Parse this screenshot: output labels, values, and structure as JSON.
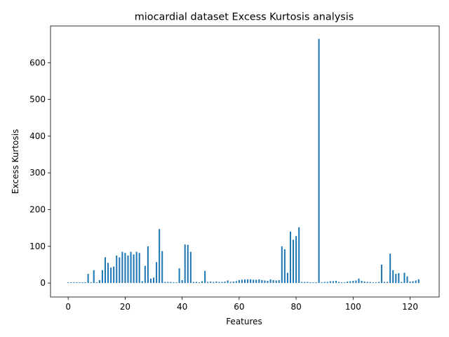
{
  "chart_data": {
    "type": "bar",
    "title": "miocardial dataset Excess Kurtosis analysis",
    "xlabel": "Features",
    "ylabel": "Excess Kurtosis",
    "xlim": [
      -6.2,
      130.2
    ],
    "ylim": [
      -38,
      700
    ],
    "xticks": [
      0,
      20,
      40,
      60,
      80,
      100,
      120
    ],
    "yticks": [
      0,
      100,
      200,
      300,
      400,
      500,
      600
    ],
    "bar_color": "#1f77b4",
    "grid": false,
    "x": [
      0,
      1,
      2,
      3,
      4,
      5,
      6,
      7,
      8,
      9,
      10,
      11,
      12,
      13,
      14,
      15,
      16,
      17,
      18,
      19,
      20,
      21,
      22,
      23,
      24,
      25,
      26,
      27,
      28,
      29,
      30,
      31,
      32,
      33,
      34,
      35,
      36,
      37,
      38,
      39,
      40,
      41,
      42,
      43,
      44,
      45,
      46,
      47,
      48,
      49,
      50,
      51,
      52,
      53,
      54,
      55,
      56,
      57,
      58,
      59,
      60,
      61,
      62,
      63,
      64,
      65,
      66,
      67,
      68,
      69,
      70,
      71,
      72,
      73,
      74,
      75,
      76,
      77,
      78,
      79,
      80,
      81,
      82,
      83,
      84,
      85,
      86,
      87,
      88,
      89,
      90,
      91,
      92,
      93,
      94,
      95,
      96,
      97,
      98,
      99,
      100,
      101,
      102,
      103,
      104,
      105,
      106,
      107,
      108,
      109,
      110,
      111,
      112,
      113,
      114,
      115,
      116,
      117,
      118,
      119,
      120,
      121,
      122,
      123
    ],
    "values": [
      2,
      2,
      2,
      2,
      2,
      2,
      2,
      25,
      2,
      35,
      2,
      8,
      35,
      70,
      55,
      42,
      45,
      75,
      70,
      85,
      82,
      75,
      85,
      78,
      85,
      82,
      5,
      47,
      100,
      12,
      15,
      57,
      147,
      87,
      3,
      3,
      3,
      2,
      2,
      40,
      8,
      105,
      104,
      85,
      3,
      3,
      2,
      5,
      33,
      3,
      4,
      3,
      4,
      3,
      3,
      4,
      7,
      3,
      4,
      5,
      8,
      9,
      10,
      10,
      10,
      9,
      9,
      10,
      8,
      7,
      6,
      10,
      8,
      7,
      8,
      100,
      92,
      28,
      140,
      118,
      128,
      152,
      3,
      3,
      3,
      2,
      2,
      2,
      665,
      2,
      3,
      3,
      5,
      5,
      6,
      3,
      2,
      2,
      4,
      5,
      6,
      7,
      12,
      6,
      4,
      3,
      3,
      2,
      2,
      3,
      50,
      3,
      3,
      80,
      35,
      25,
      27,
      3,
      28,
      18,
      4,
      5,
      7,
      10
    ]
  }
}
